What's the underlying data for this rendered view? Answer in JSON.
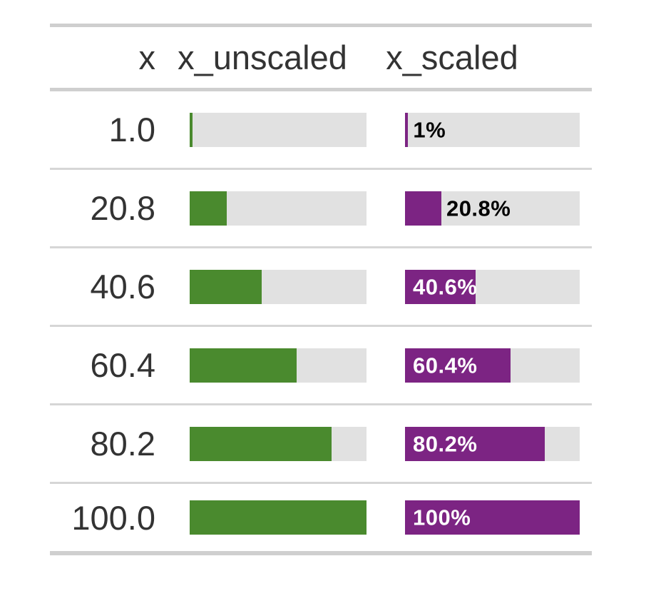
{
  "chart_data": {
    "type": "table",
    "columns": [
      "x",
      "x_unscaled",
      "x_scaled"
    ],
    "rows": [
      {
        "x": "1.0",
        "value": 1.0,
        "unscaled_pct": 1.0,
        "scaled_pct": 1.0,
        "scaled_label": "1%",
        "label_inside": false
      },
      {
        "x": "20.8",
        "value": 20.8,
        "unscaled_pct": 20.8,
        "scaled_pct": 20.8,
        "scaled_label": "20.8%",
        "label_inside": false
      },
      {
        "x": "40.6",
        "value": 40.6,
        "unscaled_pct": 40.6,
        "scaled_pct": 40.6,
        "scaled_label": "40.6%",
        "label_inside": true
      },
      {
        "x": "60.4",
        "value": 60.4,
        "unscaled_pct": 60.4,
        "scaled_pct": 60.4,
        "scaled_label": "60.4%",
        "label_inside": true
      },
      {
        "x": "80.2",
        "value": 80.2,
        "unscaled_pct": 80.2,
        "scaled_pct": 80.2,
        "scaled_label": "80.2%",
        "label_inside": true
      },
      {
        "x": "100.0",
        "value": 100.0,
        "unscaled_pct": 100.0,
        "scaled_pct": 100.0,
        "scaled_label": "100%",
        "label_inside": true
      }
    ],
    "bar_range": [
      0,
      100
    ],
    "colors": {
      "unscaled_fill": "#4a8a2e",
      "scaled_fill": "#7c2483",
      "track": "#e1e1e1",
      "border": "#cfcfcf",
      "row_line": "#d6d6d6",
      "text": "#333333",
      "label_outside": "#000000",
      "label_inside": "#ffffff"
    }
  }
}
